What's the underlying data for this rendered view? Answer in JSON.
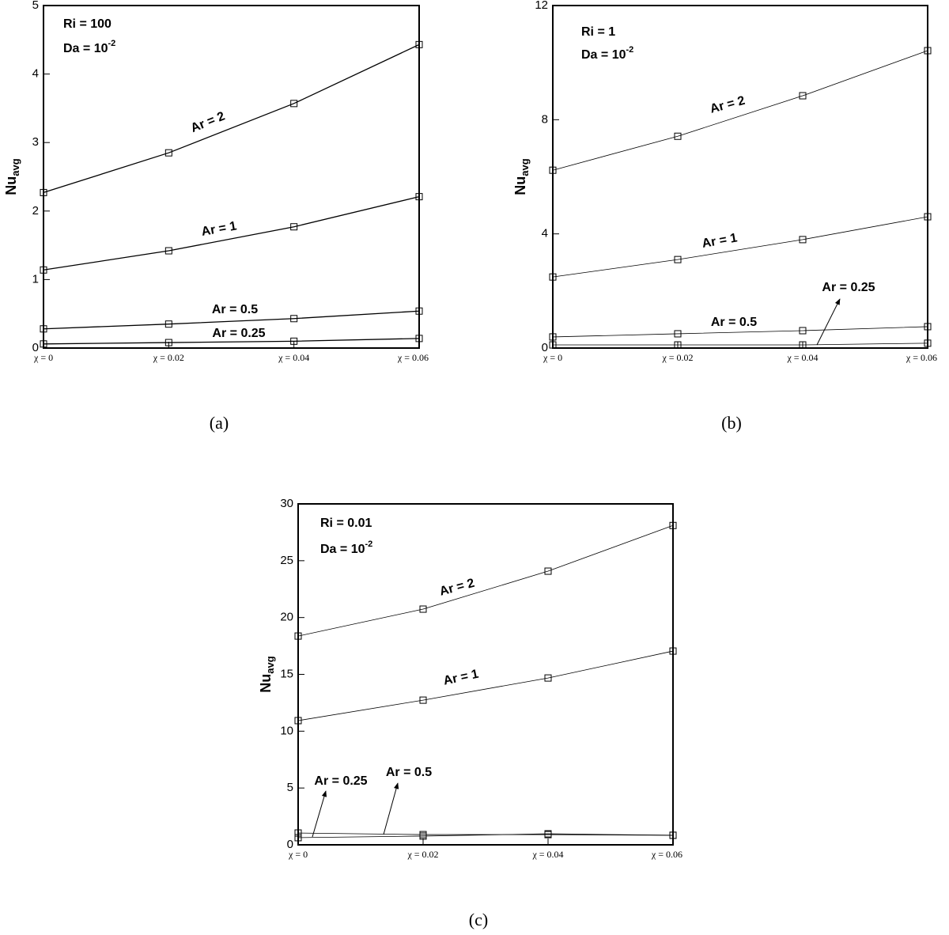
{
  "chart_data": [
    {
      "type": "line",
      "caption": "(a)",
      "notes": [
        {
          "text": "Ri = 100"
        },
        {
          "text": "Da = 10",
          "exponent": "-2"
        }
      ],
      "ylabel": {
        "text": "Nu",
        "subscript": "avg"
      },
      "categories": [
        "χ = 0",
        "χ = 0.02",
        "χ = 0.04",
        "χ = 0.06"
      ],
      "ylim": [
        0,
        5
      ],
      "yticks": [
        0,
        1,
        2,
        3,
        4,
        5
      ],
      "series": [
        {
          "name": "Ar = 2",
          "color": "#000000",
          "values": [
            2.27,
            2.85,
            3.57,
            4.43
          ]
        },
        {
          "name": "Ar = 1",
          "color": "#000000",
          "values": [
            1.14,
            1.42,
            1.77,
            2.21
          ]
        },
        {
          "name": "Ar = 0.5",
          "color": "#000000",
          "values": [
            0.28,
            0.35,
            0.43,
            0.54
          ]
        },
        {
          "name": "Ar = 0.25",
          "color": "#000000",
          "values": [
            0.06,
            0.08,
            0.1,
            0.14
          ]
        }
      ]
    },
    {
      "type": "line",
      "caption": "(b)",
      "notes": [
        {
          "text": "Ri = 1"
        },
        {
          "text": "Da = 10",
          "exponent": "-2"
        }
      ],
      "ylabel": {
        "text": "Nu",
        "subscript": "avg"
      },
      "categories": [
        "χ = 0",
        "χ = 0.02",
        "χ = 0.04",
        "χ = 0.06"
      ],
      "ylim": [
        0,
        12
      ],
      "yticks": [
        0,
        4,
        8,
        12
      ],
      "series": [
        {
          "name": "Ar = 2",
          "color": "#000000",
          "values": [
            6.23,
            7.42,
            8.84,
            10.42
          ]
        },
        {
          "name": "Ar = 1",
          "color": "#000000",
          "values": [
            2.49,
            3.1,
            3.8,
            4.6
          ]
        },
        {
          "name": "Ar = 0.5",
          "color": "#000000",
          "values": [
            0.39,
            0.5,
            0.61,
            0.75
          ]
        },
        {
          "name": "Ar = 0.25",
          "color": "#000000",
          "values": [
            0.11,
            0.11,
            0.11,
            0.17
          ]
        }
      ]
    },
    {
      "type": "line",
      "caption": "(c)",
      "notes": [
        {
          "text": "Ri = 0.01"
        },
        {
          "text": "Da = 10",
          "exponent": "-2"
        }
      ],
      "ylabel": {
        "text": "Nu",
        "subscript": "avg"
      },
      "categories": [
        "χ = 0",
        "χ = 0.02",
        "χ = 0.04",
        "χ = 0.06"
      ],
      "ylim": [
        0,
        30
      ],
      "yticks": [
        0,
        5,
        10,
        15,
        20,
        25,
        30
      ],
      "series": [
        {
          "name": "Ar = 2",
          "color": "#000000",
          "values": [
            18.37,
            20.74,
            24.08,
            28.1
          ]
        },
        {
          "name": "Ar = 1",
          "color": "#000000",
          "values": [
            10.93,
            12.73,
            14.68,
            17.05
          ]
        },
        {
          "name": "Ar = 0.5",
          "color": "#000000",
          "values": [
            1.04,
            0.9,
            0.9,
            0.84
          ]
        },
        {
          "name": "Ar = 0.25",
          "color": "#000000",
          "values": [
            0.63,
            0.77,
            0.97,
            0.84
          ]
        }
      ]
    }
  ]
}
